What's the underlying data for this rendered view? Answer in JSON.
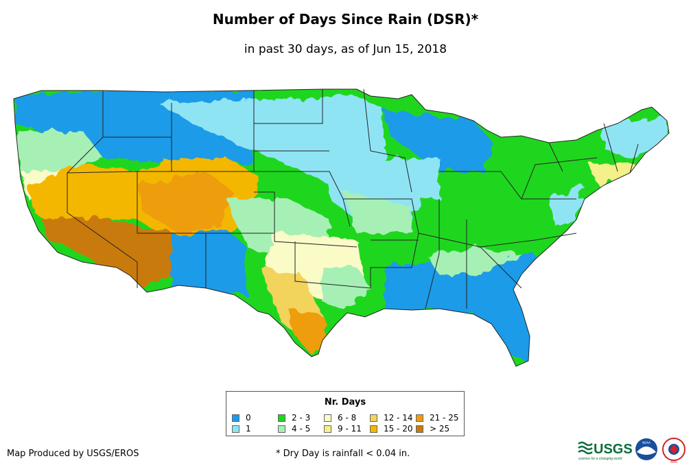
{
  "title": "Number of Days Since Rain (DSR)*",
  "subtitle": "in past 30 days, as of Jun 15, 2018",
  "legend": {
    "title": "Nr. Days",
    "items": [
      {
        "label": "0",
        "color": "#1c9be8"
      },
      {
        "label": "1",
        "color": "#8fe4f4"
      },
      {
        "label": "2 - 3",
        "color": "#1fd61f"
      },
      {
        "label": "4 - 5",
        "color": "#a6f0b6"
      },
      {
        "label": "6 - 8",
        "color": "#fbfbc8"
      },
      {
        "label": "9 - 11",
        "color": "#f4f08a"
      },
      {
        "label": "12 - 14",
        "color": "#f2d35c"
      },
      {
        "label": "15 - 20",
        "color": "#f4b700"
      },
      {
        "label": "21 - 25",
        "color": "#ee9d0c"
      },
      {
        "label": "> 25",
        "color": "#c97a0e"
      }
    ]
  },
  "footer": {
    "credit": "Map Produced by USGS/EROS",
    "note": "* Dry Day is rainfall < 0.04 in."
  },
  "logos": {
    "usgs_text": "USGS",
    "usgs_tagline": "science for a changing world",
    "noaa_text": "NOAA",
    "nws_text": "NWS"
  }
}
